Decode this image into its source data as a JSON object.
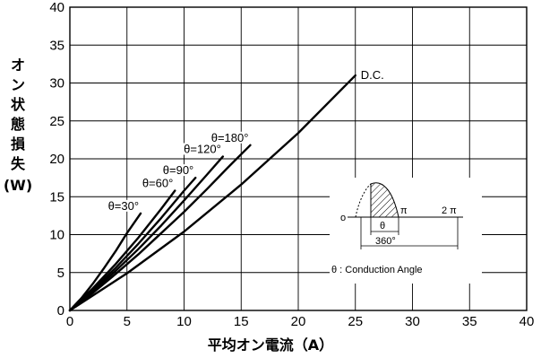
{
  "chart_data": {
    "type": "line",
    "xlabel": "平均オン電流（A）",
    "ylabel": "オン状態損失（W）",
    "xlim": [
      0,
      40
    ],
    "ylim": [
      0,
      40
    ],
    "xticks": [
      "0",
      "5",
      "10",
      "15",
      "20",
      "25",
      "30",
      "35",
      "40"
    ],
    "yticks": [
      "0",
      "5",
      "10",
      "15",
      "20",
      "25",
      "30",
      "35",
      "40"
    ],
    "grid": true,
    "series": [
      {
        "name": "θ=30°",
        "x": [
          0,
          1,
          2,
          3,
          4,
          5,
          6.2
        ],
        "y": [
          0,
          1.6,
          3.5,
          5.6,
          7.8,
          10.2,
          12.8
        ]
      },
      {
        "name": "θ=60°",
        "x": [
          0,
          2,
          4,
          6,
          8,
          9.2
        ],
        "y": [
          0,
          2.9,
          6.1,
          9.6,
          13.4,
          15.8
        ]
      },
      {
        "name": "θ=90°",
        "x": [
          0,
          2,
          4,
          6,
          8,
          10,
          11
        ],
        "y": [
          0,
          2.7,
          5.6,
          8.8,
          12.2,
          15.8,
          17.5
        ]
      },
      {
        "name": "θ=120°",
        "x": [
          0,
          2,
          4,
          6,
          8,
          10,
          12,
          13.4
        ],
        "y": [
          0,
          2.5,
          5.2,
          8.1,
          11.2,
          14.5,
          17.9,
          20.3
        ]
      },
      {
        "name": "θ=180°",
        "x": [
          0,
          2,
          4,
          6,
          8,
          10,
          12,
          14,
          15.8
        ],
        "y": [
          0,
          2.3,
          4.8,
          7.4,
          10.2,
          13.0,
          16.0,
          19.1,
          21.8
        ]
      },
      {
        "name": "D.C.",
        "x": [
          0,
          5,
          10,
          15,
          20,
          25
        ],
        "y": [
          0,
          4.9,
          10.4,
          16.6,
          23.4,
          31.0
        ]
      }
    ],
    "annotations": {
      "waveform_label_pi": "π",
      "waveform_label_2pi": "2 π",
      "waveform_label_theta": "θ",
      "waveform_label_360": "360°",
      "waveform_label_origin": "o",
      "inset_caption": "θ : Conduction Angle"
    }
  }
}
